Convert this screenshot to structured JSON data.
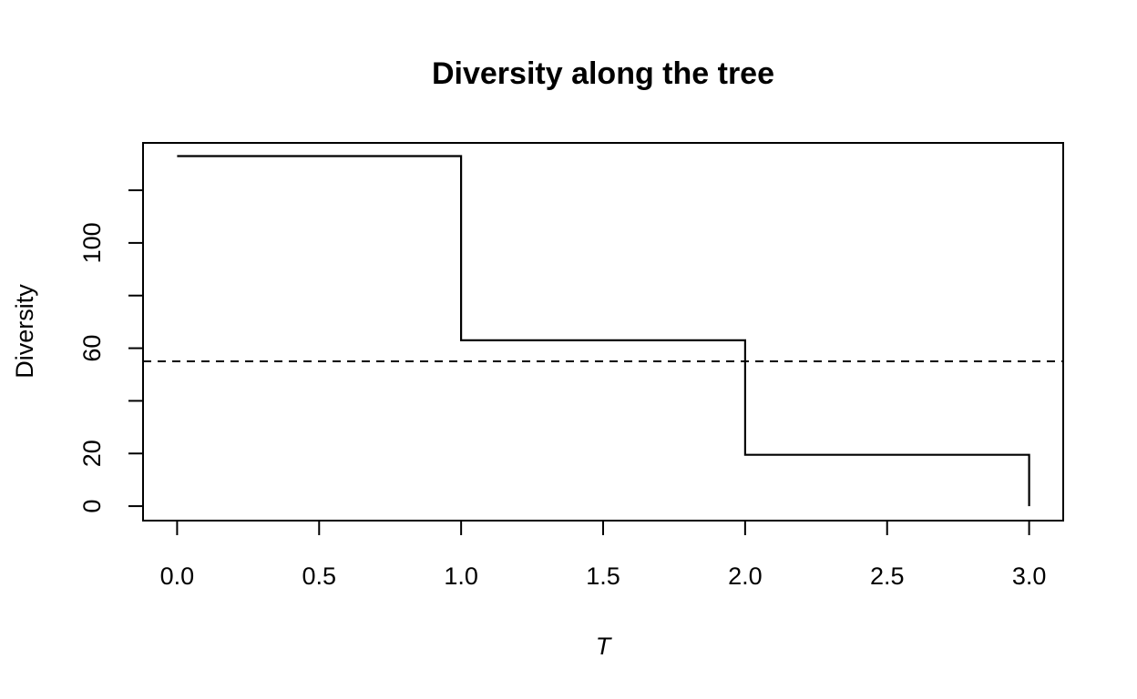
{
  "chart_data": {
    "type": "line",
    "title": "Diversity along the tree",
    "xlabel": "T",
    "ylabel": "Diversity",
    "xlim": [
      -0.12,
      3.12
    ],
    "ylim": [
      -5.5,
      138
    ],
    "x_ticks": [
      0.0,
      0.5,
      1.0,
      1.5,
      2.0,
      2.5,
      3.0
    ],
    "x_tick_labels": [
      "0.0",
      "0.5",
      "1.0",
      "1.5",
      "2.0",
      "2.5",
      "3.0"
    ],
    "y_ticks": [
      0,
      20,
      40,
      60,
      80,
      100,
      120
    ],
    "y_tick_labels": [
      "0",
      "20",
      "",
      "60",
      "",
      "100",
      ""
    ],
    "series": [
      {
        "style": "step",
        "x": [
          0.0,
          1.0,
          1.0,
          2.0,
          2.0,
          3.0,
          3.0
        ],
        "y": [
          133,
          133,
          63,
          63,
          19.5,
          19.5,
          0
        ]
      }
    ],
    "reference_lines": [
      {
        "orientation": "horizontal",
        "y": 55,
        "style": "dashed"
      }
    ],
    "grid": false,
    "legend": "none"
  },
  "colors": {
    "line": "#000000",
    "background": "#ffffff"
  }
}
